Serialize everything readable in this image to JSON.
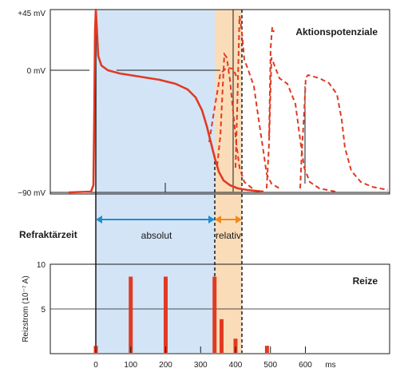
{
  "top_panel": {
    "title": "Aktionspotenziale",
    "y_labels": {
      "top": "+45 mV",
      "zero": "0 mV",
      "bottom": "−90 mV"
    }
  },
  "refractory": {
    "label": "Refraktärzeit",
    "absolute": "absolut",
    "relative": "relativ"
  },
  "bottom_panel": {
    "title": "Reize",
    "y_axis_label": "Reizstrom (10⁻⁷ A)",
    "y_ticks": [
      "10",
      "5"
    ],
    "x_ticks": [
      "0",
      "100",
      "200",
      "300",
      "400",
      "500",
      "600"
    ],
    "x_unit": "ms"
  },
  "colors": {
    "curve": "#e03a22",
    "absolute_fill": "#d3e4f7",
    "relative_fill": "#fbdcb8",
    "absolute_arrow": "#1f8fc9",
    "relative_arrow": "#f08a1c"
  },
  "chart_data": {
    "type": "bar",
    "x_unit": "ms",
    "xlim": [
      0,
      600
    ],
    "ylim": [
      0,
      10
    ],
    "stimuli": [
      {
        "t": 0,
        "amp": 0.8
      },
      {
        "t": 100,
        "amp": 8.6
      },
      {
        "t": 200,
        "amp": 8.6
      },
      {
        "t": 340,
        "amp": 8.6
      },
      {
        "t": 360,
        "amp": 3.8
      },
      {
        "t": 400,
        "amp": 1.6
      },
      {
        "t": 490,
        "amp": 0.8
      }
    ]
  }
}
